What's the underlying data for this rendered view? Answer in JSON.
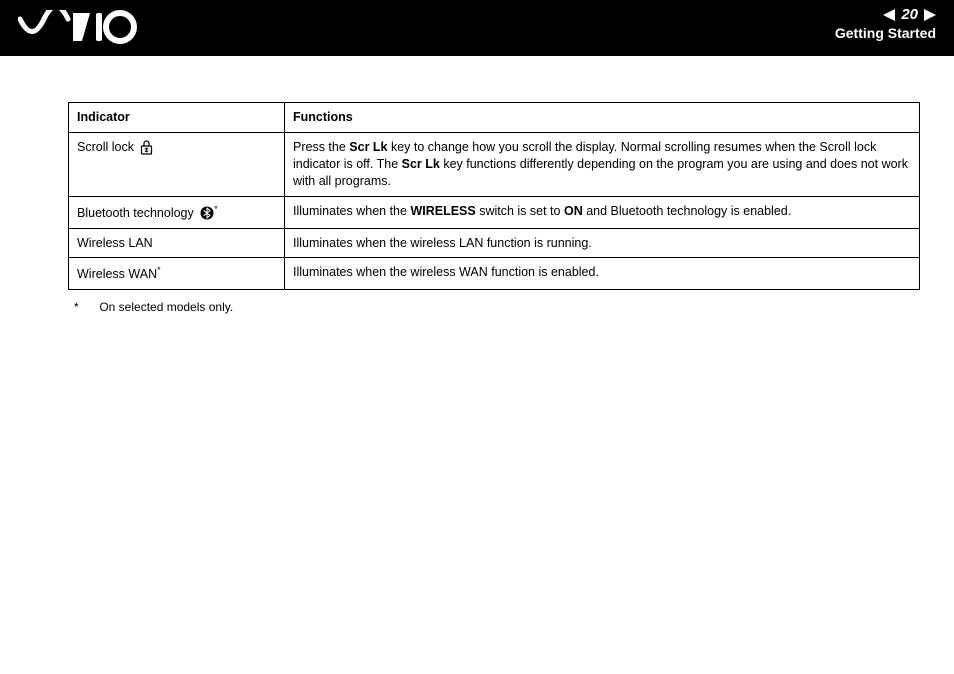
{
  "header": {
    "page_number": "20",
    "section": "Getting Started"
  },
  "table": {
    "header_indicator": "Indicator",
    "header_functions": "Functions",
    "rows": [
      {
        "indicator_label": "Scroll lock",
        "icon": "scroll-lock-icon",
        "asterisk": false,
        "func_parts": [
          {
            "t": "Press the ",
            "b": false
          },
          {
            "t": "Scr Lk",
            "b": true
          },
          {
            "t": " key to change how you scroll the display. Normal scrolling resumes when the Scroll lock indicator is off. The ",
            "b": false
          },
          {
            "t": "Scr Lk",
            "b": true
          },
          {
            "t": " key functions differently depending on the program you are using and does not work with all programs.",
            "b": false
          }
        ]
      },
      {
        "indicator_label": "Bluetooth technology",
        "icon": "bluetooth-icon",
        "asterisk": true,
        "func_parts": [
          {
            "t": "Illuminates when the ",
            "b": false
          },
          {
            "t": "WIRELESS",
            "b": true
          },
          {
            "t": " switch is set to ",
            "b": false
          },
          {
            "t": "ON",
            "b": true
          },
          {
            "t": " and Bluetooth technology is enabled.",
            "b": false
          }
        ]
      },
      {
        "indicator_label": "Wireless LAN",
        "icon": null,
        "asterisk": false,
        "func_parts": [
          {
            "t": "Illuminates when the wireless LAN function is running.",
            "b": false
          }
        ]
      },
      {
        "indicator_label": "Wireless WAN",
        "icon": null,
        "asterisk": true,
        "func_parts": [
          {
            "t": "Illuminates when the wireless WAN function is enabled.",
            "b": false
          }
        ]
      }
    ]
  },
  "footnote": {
    "symbol": "*",
    "text": "On selected models only."
  },
  "colors": {
    "header_bg": "#000000",
    "header_text": "#ffffff",
    "page_bg": "#ffffff",
    "text": "#000000",
    "border": "#000000"
  }
}
